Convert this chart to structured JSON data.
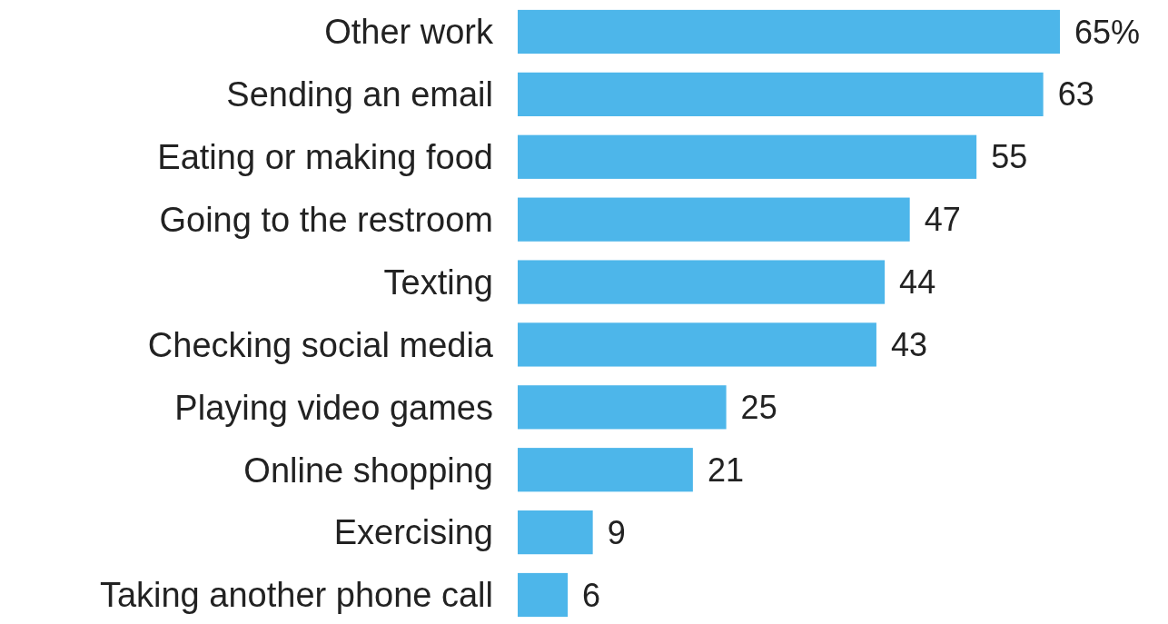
{
  "chart_data": {
    "type": "bar",
    "orientation": "horizontal",
    "categories": [
      "Other work",
      "Sending an email",
      "Eating or making food",
      "Going to the restroom",
      "Texting",
      "Checking social media",
      "Playing video games",
      "Online shopping",
      "Exercising",
      "Taking another phone call"
    ],
    "values": [
      65,
      63,
      55,
      47,
      44,
      43,
      25,
      21,
      9,
      6
    ],
    "value_labels": [
      "65%",
      "63",
      "55",
      "47",
      "44",
      "43",
      "25",
      "21",
      "9",
      "6"
    ],
    "color": "#4db6ea"
  }
}
